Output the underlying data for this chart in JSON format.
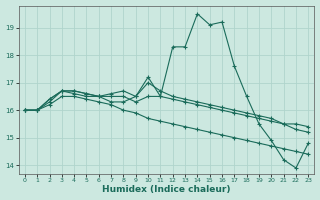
{
  "title": "",
  "xlabel": "Humidex (Indice chaleur)",
  "ylabel": "",
  "background_color": "#cce8e0",
  "grid_color": "#b0d4cc",
  "line_color": "#1a6b5a",
  "xlim": [
    -0.5,
    23.5
  ],
  "ylim": [
    13.7,
    19.8
  ],
  "yticks": [
    14,
    15,
    16,
    17,
    18,
    19
  ],
  "xticks": [
    0,
    1,
    2,
    3,
    4,
    5,
    6,
    7,
    8,
    9,
    10,
    11,
    12,
    13,
    14,
    15,
    16,
    17,
    18,
    19,
    20,
    21,
    22,
    23
  ],
  "series": [
    {
      "x": [
        0,
        1,
        2,
        3,
        4,
        5,
        6,
        7,
        8,
        9,
        10,
        11,
        12,
        13,
        14,
        15,
        16,
        17,
        18,
        19,
        20,
        21,
        22,
        23
      ],
      "y": [
        16.0,
        16.0,
        16.4,
        16.7,
        16.7,
        16.6,
        16.5,
        16.3,
        16.3,
        16.5,
        17.2,
        16.5,
        18.3,
        18.3,
        19.5,
        19.1,
        19.2,
        17.6,
        16.5,
        15.5,
        14.9,
        14.2,
        13.9,
        14.8
      ]
    },
    {
      "x": [
        0,
        1,
        2,
        3,
        4,
        5,
        6,
        7,
        8,
        9,
        10,
        11,
        12,
        13,
        14,
        15,
        16,
        17,
        18,
        19,
        20,
        21,
        22,
        23
      ],
      "y": [
        16.0,
        16.0,
        16.4,
        16.7,
        16.7,
        16.6,
        16.5,
        16.5,
        16.5,
        16.3,
        16.5,
        16.5,
        16.4,
        16.3,
        16.2,
        16.1,
        16.0,
        15.9,
        15.8,
        15.7,
        15.6,
        15.5,
        15.5,
        15.4
      ]
    },
    {
      "x": [
        0,
        1,
        2,
        3,
        4,
        5,
        6,
        7,
        8,
        9,
        10,
        11,
        12,
        13,
        14,
        15,
        16,
        17,
        18,
        19,
        20,
        21,
        22,
        23
      ],
      "y": [
        16.0,
        16.0,
        16.3,
        16.7,
        16.6,
        16.5,
        16.5,
        16.6,
        16.7,
        16.5,
        17.0,
        16.7,
        16.5,
        16.4,
        16.3,
        16.2,
        16.1,
        16.0,
        15.9,
        15.8,
        15.7,
        15.5,
        15.3,
        15.2
      ]
    },
    {
      "x": [
        0,
        1,
        2,
        3,
        4,
        5,
        6,
        7,
        8,
        9,
        10,
        11,
        12,
        13,
        14,
        15,
        16,
        17,
        18,
        19,
        20,
        21,
        22,
        23
      ],
      "y": [
        16.0,
        16.0,
        16.2,
        16.5,
        16.5,
        16.4,
        16.3,
        16.2,
        16.0,
        15.9,
        15.7,
        15.6,
        15.5,
        15.4,
        15.3,
        15.2,
        15.1,
        15.0,
        14.9,
        14.8,
        14.7,
        14.6,
        14.5,
        14.4
      ]
    }
  ]
}
